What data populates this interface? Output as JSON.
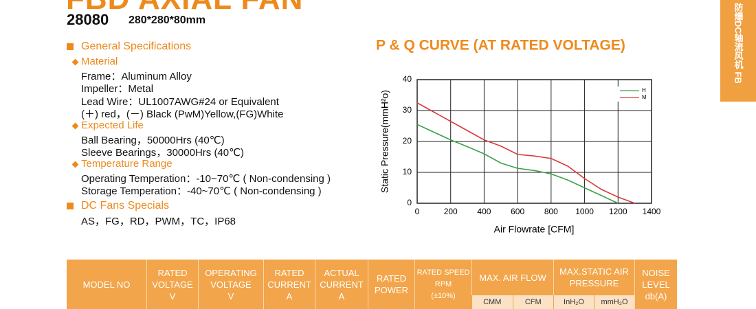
{
  "header": {
    "title": "FBD AXIAL FAN",
    "model": "28080",
    "size": "280*280*80mm"
  },
  "side_tab": "防爆DC轴流风机  FB",
  "specs": {
    "heading": "General Specifications",
    "groups": [
      {
        "title": "Material",
        "lines": [
          "Frame：Aluminum Alloy",
          "Impeller：Metal",
          "Lead Wire：UL1007AWG#24 or Equivalent",
          "(＋) red，(－) Black (PwM)Yellow,(FG)White"
        ]
      },
      {
        "title": "Expected Life",
        "lines": [
          "Ball Bearing，50000Hrs (40℃)",
          "Sleeve Bearings，30000Hrs (40℃)"
        ]
      },
      {
        "title": "Temperature Range",
        "lines": [
          "Operating Temperation：-10~70℃ ( Non-condensing )",
          "Storage Temperation：-40~70℃ ( Non-condensing )"
        ]
      }
    ],
    "specials_title": "DC Fans Specials",
    "specials": "AS，FG，RD，PWM，TC，IP68"
  },
  "chart_data": {
    "type": "line",
    "title": "P & Q CURVE (AT RATED VOLTAGE)",
    "x_label": "Air Flowrate  [CFM]",
    "y_label": "Static Pressure(mmH²o)",
    "x": [
      0,
      100,
      200,
      300,
      400,
      500,
      600,
      700,
      800,
      900,
      1000,
      1100,
      1200,
      1300
    ],
    "series": [
      {
        "name": "H",
        "color": "#3aa04a",
        "values": [
          25.5,
          23,
          20.5,
          18.3,
          16,
          13,
          11.3,
          10.6,
          9.5,
          7.5,
          5,
          2.5,
          0,
          null
        ]
      },
      {
        "name": "M",
        "color": "#d83a3a",
        "values": [
          32.5,
          29.5,
          26.5,
          23.5,
          20.5,
          18.5,
          15.8,
          15.3,
          14.5,
          12,
          8,
          4.5,
          2,
          0
        ]
      }
    ],
    "xlim": [
      0,
      1400
    ],
    "xticks": [
      0,
      200,
      400,
      600,
      800,
      1000,
      1200,
      1400
    ],
    "ylim": [
      0,
      40
    ],
    "yticks": [
      0,
      10,
      20,
      30,
      40
    ],
    "grid": true,
    "legend": "top-right"
  },
  "table": {
    "columns": [
      {
        "lines": [
          "MODEL NO"
        ]
      },
      {
        "lines": [
          "RATED",
          "VOLTAGE",
          "V"
        ]
      },
      {
        "lines": [
          "OPERATING",
          "VOLTAGE",
          "V"
        ]
      },
      {
        "lines": [
          "RATED",
          "CURRENT",
          "A"
        ]
      },
      {
        "lines": [
          "ACTUAL",
          "CURRENT",
          "A"
        ]
      },
      {
        "lines": [
          "RATED",
          "POWER"
        ]
      },
      {
        "lines": [
          "RATED SPEED",
          "RPM",
          "(±10%)"
        ]
      },
      {
        "lines": [
          "MAX. AIR FLOW"
        ],
        "sub": [
          "CMM",
          "CFM"
        ]
      },
      {
        "lines": [
          "MAX.STATIC AIR",
          "PRESSURE"
        ],
        "sub": [
          "InH₂O",
          "mmH₂O"
        ]
      },
      {
        "lines": [
          "NOISE",
          "LEVEL",
          "db(A)"
        ]
      }
    ]
  }
}
